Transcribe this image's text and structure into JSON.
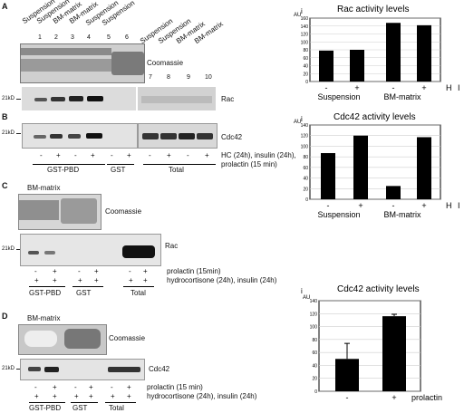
{
  "panels": {
    "A": {
      "letter": "A",
      "lane_titles": [
        "Suspension",
        "Suspension",
        "BM-matrix",
        "BM-matrix",
        "Suspension",
        "Suspension",
        "Suspension",
        "Suspension",
        "BM-matrix",
        "BM-matrix"
      ],
      "lane_numbers": [
        "1",
        "2",
        "3",
        "4",
        "5",
        "6",
        "7",
        "8",
        "9",
        "10"
      ],
      "coomassie_label": "Coomassie",
      "rac_label": "Rac",
      "marker": "21kD"
    },
    "B": {
      "letter": "B",
      "cdc42_label": "Cdc42",
      "marker": "21kD",
      "signs_row": [
        "-",
        "+",
        "-",
        "+",
        "-",
        "+",
        "-",
        "+",
        "-",
        "+"
      ],
      "treatment": "HC (24h), insulin (24h),",
      "treatment2": "prolactin (15 min)",
      "groups": [
        "GST-PBD",
        "GST",
        "Total"
      ]
    },
    "C": {
      "letter": "C",
      "title": "BM-matrix",
      "coomassie_label": "Coomassie",
      "rac_label": "Rac",
      "marker": "21kD",
      "row1_signs": [
        "-",
        "+",
        "-",
        "+",
        "-",
        "+"
      ],
      "row2_signs": [
        "+",
        "+",
        "+",
        "+",
        "+",
        "+"
      ],
      "row1_label": "prolactin (15min)",
      "row2_label": "hydrocortisone (24h), insulin (24h)",
      "groups": [
        "GST-PBD",
        "GST",
        "Total"
      ]
    },
    "D": {
      "letter": "D",
      "title": "BM-matrix",
      "coomassie_label": "Coomassie",
      "cdc42_label": "Cdc42",
      "marker": "21kD",
      "row1_signs": [
        "-",
        "+",
        "-",
        "+",
        "-",
        "+"
      ],
      "row2_signs": [
        "+",
        "+",
        "+",
        "+",
        "+",
        "+"
      ],
      "row1_label": "prolactin (15 min)",
      "row2_label": "hydrocortisone (24h), insulin (24h)",
      "groups": [
        "GST-PBD",
        "GST",
        "Total"
      ]
    }
  },
  "chart_data": [
    {
      "type": "bar",
      "panel_label": "i",
      "title": "Rac activity levels",
      "ylabel": "AU",
      "ylim": [
        0,
        160
      ],
      "yticks": [
        0,
        20,
        40,
        60,
        80,
        100,
        120,
        140,
        160
      ],
      "categories": [
        "-",
        "+",
        "-",
        "+"
      ],
      "values": [
        78,
        80,
        148,
        142
      ],
      "group_labels": [
        "Suspension",
        "BM-matrix"
      ],
      "treatment_label": "H I P"
    },
    {
      "type": "bar",
      "panel_label": "i",
      "title": "Cdc42 activity levels",
      "ylabel": "AU",
      "ylim": [
        0,
        140
      ],
      "yticks": [
        0,
        20,
        40,
        60,
        80,
        100,
        120,
        140
      ],
      "categories": [
        "-",
        "+",
        "-",
        "+"
      ],
      "values": [
        87,
        120,
        25,
        117
      ],
      "group_labels": [
        "Suspension",
        "BM-matrix"
      ],
      "treatment_label": "H I P"
    },
    {
      "type": "bar",
      "panel_label": "i",
      "title": "Cdc42 activity levels",
      "ylabel": "AU",
      "ylim": [
        0,
        140
      ],
      "yticks": [
        0,
        20,
        40,
        60,
        80,
        100,
        120,
        140
      ],
      "categories": [
        "-",
        "+"
      ],
      "values": [
        50,
        116
      ],
      "errors": [
        24,
        3
      ],
      "x_suffix": "prolactin"
    }
  ],
  "colors": {
    "bar": "#000000",
    "gel_bg": "#d9d9d9",
    "coomassie": "#8c8c8c"
  }
}
